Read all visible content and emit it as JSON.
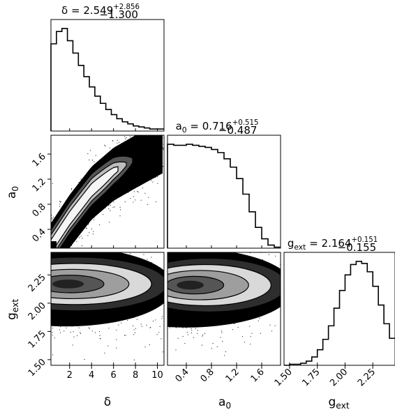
{
  "chart_data": {
    "type": "corner",
    "parameters": [
      {
        "key": "delta",
        "axis_label": "δ",
        "title_prefix": "δ = ",
        "median": "2.549",
        "err_plus": "+2.856",
        "err_minus": "−1.300",
        "range": [
          0.3,
          10.6
        ],
        "ticks": [
          2,
          4,
          6,
          8,
          10
        ],
        "tick_labels": [
          "2",
          "4",
          "6",
          "8",
          "10"
        ],
        "histogram": {
          "edges": [
            0.3,
            0.8,
            1.3,
            1.8,
            2.3,
            2.8,
            3.3,
            3.8,
            4.3,
            4.8,
            5.3,
            5.8,
            6.3,
            6.8,
            7.3,
            7.8,
            8.3,
            8.8,
            9.3,
            10.6
          ],
          "counts": [
            0.85,
            0.97,
            1.0,
            0.88,
            0.76,
            0.64,
            0.53,
            0.43,
            0.34,
            0.27,
            0.21,
            0.16,
            0.12,
            0.09,
            0.07,
            0.05,
            0.04,
            0.03,
            0.02
          ]
        }
      },
      {
        "key": "a0",
        "axis_label_base": "a",
        "axis_label_sub": "0",
        "title_prefix_base": "a",
        "title_prefix_sub": "0",
        "title_eq": " = ",
        "median": "0.716",
        "err_plus": "+0.515",
        "err_minus": "−0.487",
        "range": [
          0.1,
          1.9
        ],
        "ticks": [
          0.4,
          0.8,
          1.2,
          1.6
        ],
        "tick_labels": [
          "0.4",
          "0.8",
          "1.2",
          "1.6"
        ],
        "histogram": {
          "edges": [
            0.1,
            0.2,
            0.3,
            0.4,
            0.5,
            0.6,
            0.7,
            0.8,
            0.9,
            1.0,
            1.1,
            1.2,
            1.3,
            1.4,
            1.5,
            1.6,
            1.7,
            1.8,
            1.9
          ],
          "counts": [
            1.0,
            0.99,
            0.99,
            1.0,
            0.99,
            0.98,
            0.97,
            0.95,
            0.92,
            0.86,
            0.78,
            0.67,
            0.52,
            0.35,
            0.2,
            0.09,
            0.03,
            0.01
          ]
        }
      },
      {
        "key": "g_ext",
        "axis_label_base": "g",
        "axis_label_sub": "ext",
        "title_prefix_base": "g",
        "title_prefix_sub": "ext",
        "title_eq": " = ",
        "median": "2.164",
        "err_plus": "+0.151",
        "err_minus": "−0.155",
        "range": [
          1.45,
          2.45
        ],
        "ticks": [
          1.5,
          1.75,
          2.0,
          2.25
        ],
        "tick_labels": [
          "1.50",
          "1.75",
          "2.00",
          "2.25"
        ],
        "histogram": {
          "edges": [
            1.45,
            1.5,
            1.55,
            1.6,
            1.65,
            1.7,
            1.75,
            1.8,
            1.85,
            1.9,
            1.95,
            2.0,
            2.05,
            2.1,
            2.15,
            2.2,
            2.25,
            2.3,
            2.35,
            2.4,
            2.45
          ],
          "counts": [
            0.0,
            0.01,
            0.01,
            0.02,
            0.04,
            0.08,
            0.15,
            0.25,
            0.38,
            0.55,
            0.72,
            0.87,
            0.97,
            1.0,
            0.98,
            0.9,
            0.76,
            0.58,
            0.4,
            0.26
          ]
        }
      }
    ],
    "pairs": [
      {
        "x": "delta",
        "y": "a0",
        "peak": [
          1.0,
          0.05
        ],
        "shape": "ridge",
        "ridge": [
          [
            0.3,
            0.1
          ],
          [
            2.0,
            0.55
          ],
          [
            4.0,
            1.0
          ],
          [
            6.0,
            1.3
          ],
          [
            8.0,
            1.5
          ],
          [
            10.6,
            1.75
          ]
        ]
      },
      {
        "x": "delta",
        "y": "g_ext",
        "peak": [
          1.7,
          2.17
        ],
        "shape": "band"
      },
      {
        "x": "a0",
        "y": "g_ext",
        "peak": [
          0.4,
          2.16
        ],
        "shape": "band"
      }
    ]
  }
}
